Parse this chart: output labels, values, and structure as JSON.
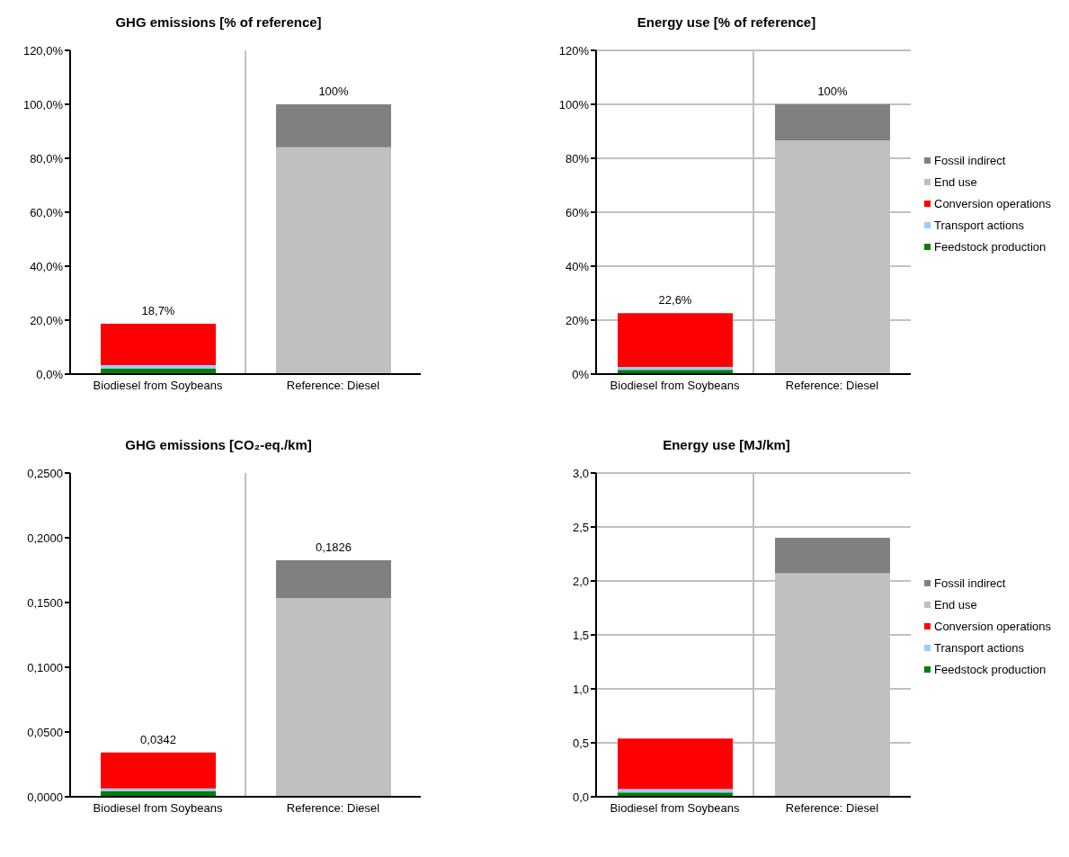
{
  "chart_data": [
    {
      "type": "bar",
      "title": "GHG emissions [% of reference]",
      "stacked": true,
      "categories": [
        "Biodiesel from Soybeans",
        "Reference: Diesel"
      ],
      "series": [
        {
          "color": "#008000",
          "values": [
            2.0,
            0
          ]
        },
        {
          "color": "#99ccff",
          "values": [
            1.3,
            0
          ]
        },
        {
          "color": "#ff0000",
          "values": [
            15.4,
            0
          ]
        },
        {
          "color": "#c0c0c0",
          "values": [
            0,
            84.1
          ]
        },
        {
          "color": "#808080",
          "values": [
            0,
            15.9
          ]
        }
      ],
      "totals": [
        "18,7%",
        "100%"
      ],
      "ylim": [
        0,
        120
      ],
      "yticks": [
        {
          "value": 0,
          "label": "0,0%"
        },
        {
          "value": 20,
          "label": "20,0%"
        },
        {
          "value": 40,
          "label": "40,0%"
        },
        {
          "value": 60,
          "label": "60,0%"
        },
        {
          "value": 80,
          "label": "80,0%"
        },
        {
          "value": 100,
          "label": "100,0%"
        },
        {
          "value": 120,
          "label": "120,0%"
        }
      ],
      "grid": "x",
      "legend": false
    },
    {
      "type": "bar",
      "title": "Energy use [% of reference]",
      "stacked": true,
      "categories": [
        "Biodiesel from Soybeans",
        "Reference: Diesel"
      ],
      "series": [
        {
          "name": "Feedstock production",
          "color": "#008000",
          "values": [
            1.6,
            0
          ]
        },
        {
          "name": "Transport actions",
          "color": "#99ccff",
          "values": [
            1.1,
            0
          ]
        },
        {
          "name": "Conversion operations",
          "color": "#ff0000",
          "values": [
            19.9,
            0
          ]
        },
        {
          "name": "End use",
          "color": "#c0c0c0",
          "values": [
            0,
            86.6
          ]
        },
        {
          "name": "Fossil indirect",
          "color": "#808080",
          "values": [
            0,
            13.4
          ]
        }
      ],
      "totals": [
        "22,6%",
        "100%"
      ],
      "ylim": [
        0,
        120
      ],
      "yticks": [
        {
          "value": 0,
          "label": "0%"
        },
        {
          "value": 20,
          "label": "20%"
        },
        {
          "value": 40,
          "label": "40%"
        },
        {
          "value": 60,
          "label": "60%"
        },
        {
          "value": 80,
          "label": "80%"
        },
        {
          "value": 100,
          "label": "100%"
        },
        {
          "value": 120,
          "label": "120%"
        }
      ],
      "grid": true,
      "legend": "right"
    },
    {
      "type": "bar",
      "title": "GHG emissions [CO₂-eq./km]",
      "stacked": true,
      "categories": [
        "Biodiesel from Soybeans",
        "Reference: Diesel"
      ],
      "series": [
        {
          "color": "#008000",
          "values": [
            0.0042,
            0
          ]
        },
        {
          "color": "#99ccff",
          "values": [
            0.0022,
            0
          ]
        },
        {
          "color": "#ff0000",
          "values": [
            0.0278,
            0
          ]
        },
        {
          "color": "#c0c0c0",
          "values": [
            0,
            0.1535
          ]
        },
        {
          "color": "#808080",
          "values": [
            0,
            0.0291
          ]
        }
      ],
      "totals": [
        "0,0342",
        "0,1826"
      ],
      "ylim": [
        0,
        0.25
      ],
      "yticks": [
        {
          "value": 0,
          "label": "0,0000"
        },
        {
          "value": 0.05,
          "label": "0,0500"
        },
        {
          "value": 0.1,
          "label": "0,1000"
        },
        {
          "value": 0.15,
          "label": "0,1500"
        },
        {
          "value": 0.2,
          "label": "0,2000"
        },
        {
          "value": 0.25,
          "label": "0,2500"
        }
      ],
      "grid": "x",
      "legend": false
    },
    {
      "type": "bar",
      "title": "Energy use [MJ/km]",
      "stacked": true,
      "categories": [
        "Biodiesel from Soybeans",
        "Reference: Diesel"
      ],
      "series": [
        {
          "name": "Feedstock production",
          "color": "#008000",
          "values": [
            0.04,
            0
          ]
        },
        {
          "name": "Transport actions",
          "color": "#99ccff",
          "values": [
            0.03,
            0
          ]
        },
        {
          "name": "Conversion operations",
          "color": "#ff0000",
          "values": [
            0.47,
            0
          ]
        },
        {
          "name": "End use",
          "color": "#c0c0c0",
          "values": [
            0,
            2.07
          ]
        },
        {
          "name": "Fossil indirect",
          "color": "#808080",
          "values": [
            0,
            0.33
          ]
        }
      ],
      "ylim": [
        0,
        3.0
      ],
      "yticks": [
        {
          "value": 0,
          "label": "0,0"
        },
        {
          "value": 0.5,
          "label": "0,5"
        },
        {
          "value": 1.0,
          "label": "1,0"
        },
        {
          "value": 1.5,
          "label": "1,5"
        },
        {
          "value": 2.0,
          "label": "2,0"
        },
        {
          "value": 2.5,
          "label": "2,5"
        },
        {
          "value": 3.0,
          "label": "3,0"
        }
      ],
      "grid": true,
      "legend": "right"
    }
  ]
}
